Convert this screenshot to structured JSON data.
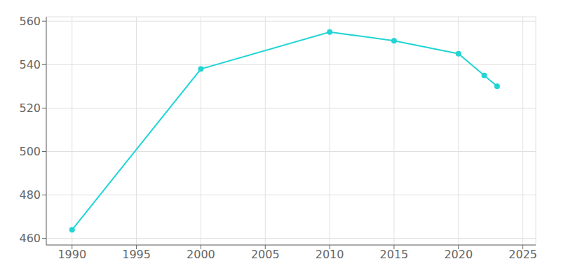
{
  "chart_data": {
    "type": "line",
    "x": [
      1990,
      2000,
      2010,
      2015,
      2020,
      2022,
      2023
    ],
    "values": [
      464,
      538,
      555,
      551,
      545,
      535,
      530
    ],
    "color": "#22d4d4",
    "marker": "o",
    "xlim": [
      1988,
      2026
    ],
    "ylim": [
      457,
      562
    ],
    "xticks": [
      1990,
      1995,
      2000,
      2005,
      2010,
      2015,
      2020,
      2025
    ],
    "yticks": [
      460,
      480,
      500,
      520,
      540,
      560
    ],
    "grid": true
  }
}
